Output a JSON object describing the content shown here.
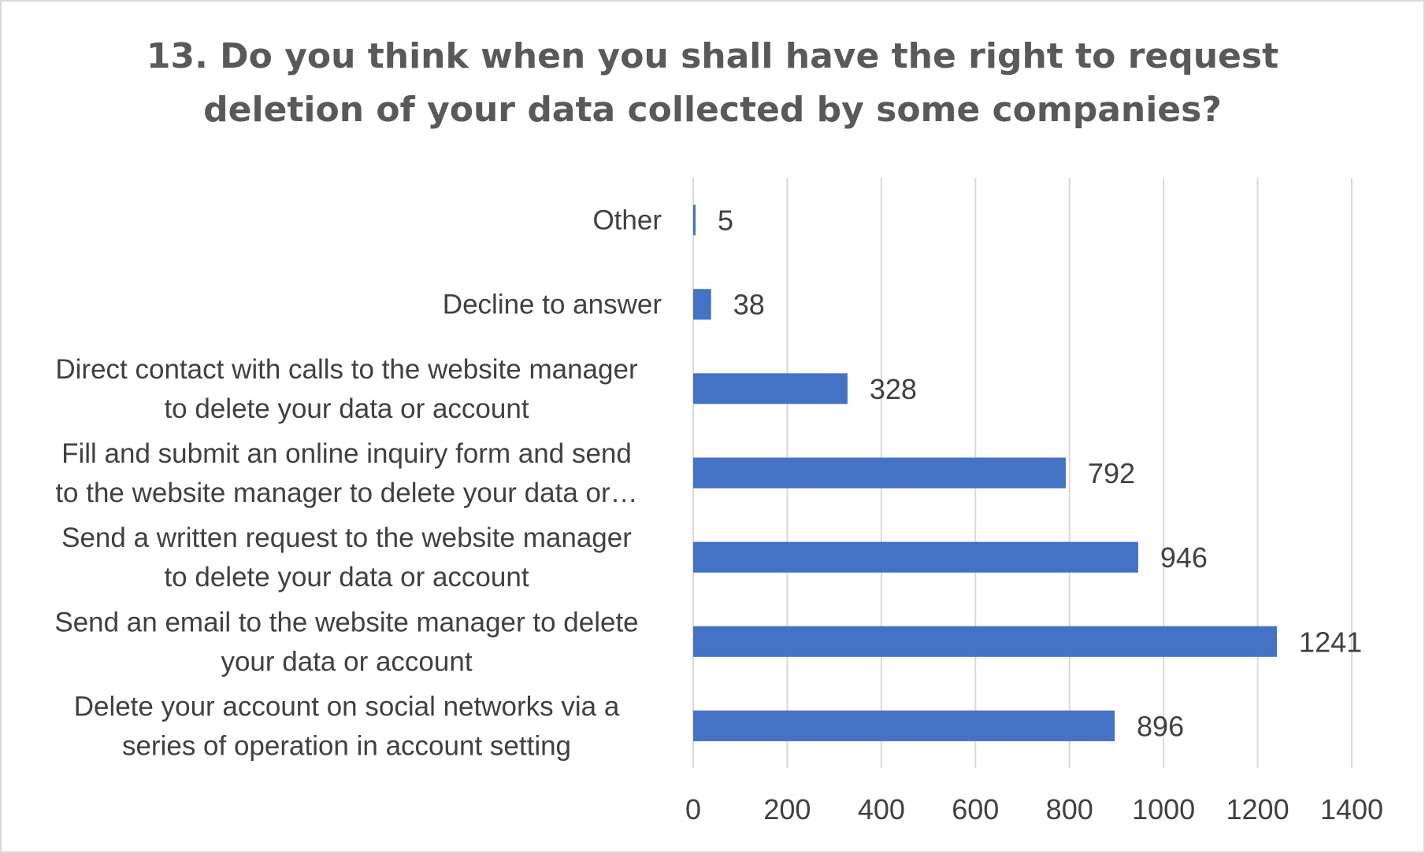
{
  "chart_data": {
    "type": "bar",
    "orientation": "horizontal",
    "title_lines": [
      "13. Do you think when you shall have the right to request",
      "deletion of your data collected by some companies?"
    ],
    "categories": [
      [
        "Other"
      ],
      [
        "Decline to answer"
      ],
      [
        "Direct contact with calls to the website manager",
        "to delete your data or account"
      ],
      [
        "Fill and submit an online inquiry form and send",
        "to the website manager to delete your data or…"
      ],
      [
        "Send a written request to the website manager",
        "to delete your data or account"
      ],
      [
        "Send an email to the website manager to delete",
        "your data or account"
      ],
      [
        "Delete your account on social networks via a",
        "series of operation in account setting"
      ]
    ],
    "values": [
      5,
      38,
      328,
      792,
      946,
      1241,
      896
    ],
    "xlim": [
      0,
      1400
    ],
    "x_ticks": [
      0,
      200,
      400,
      600,
      800,
      1000,
      1200,
      1400
    ],
    "grid": true,
    "legend": "none",
    "data_labels": true,
    "colors": {
      "bar": "#4472c4",
      "grid": "#d9d9d9",
      "text": "#404040",
      "title": "#595959",
      "border": "#d9d9d9"
    }
  }
}
